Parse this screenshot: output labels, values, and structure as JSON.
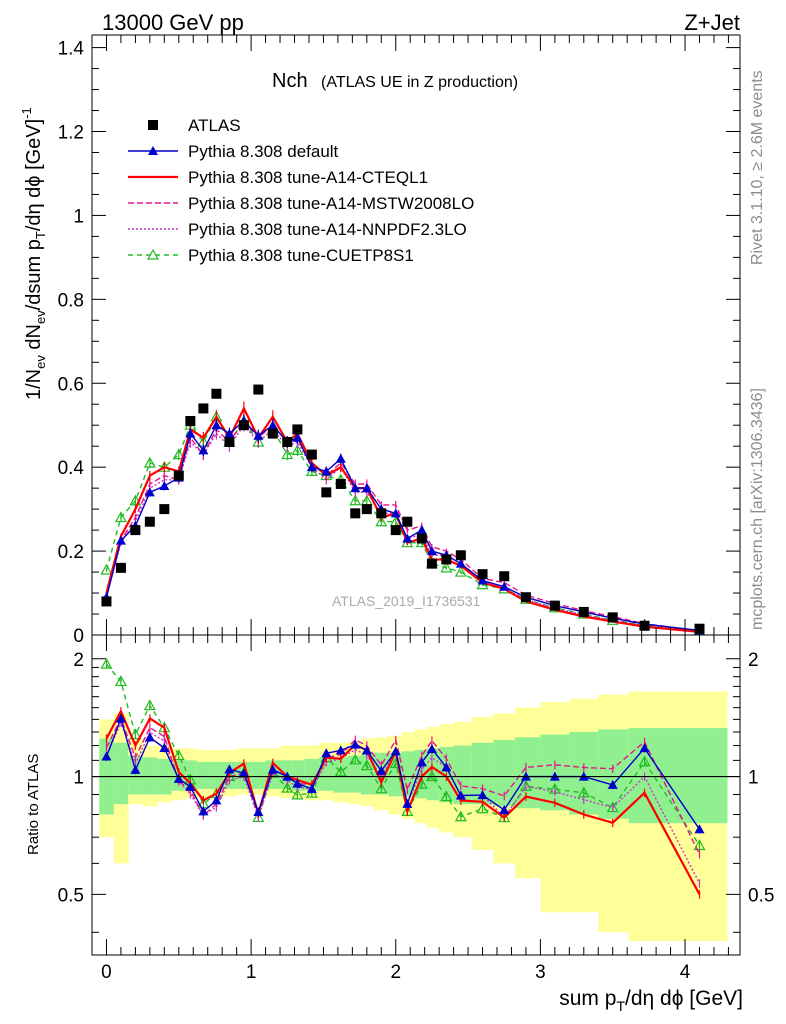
{
  "header": {
    "energy": "13000 GeV pp",
    "process": "Z+Jet"
  },
  "side_labels": {
    "rivet": "Rivet 3.1.10, ≥ 2.6M events",
    "mcplots": "mcplots.cern.ch [arXiv:1306.3436]"
  },
  "watermark": "ATLAS_2019_I1736531",
  "chart_data": [
    {
      "type": "scatter",
      "title": "Nch",
      "subtitle": "(ATLAS UE in Z production)",
      "ylabel": "1/N_ev dN_ev/dsum p_T/dη dϕ [GeV]^-1",
      "xlabel": "sum p_T/dη dϕ [GeV]",
      "xlim": [
        -0.1,
        4.38
      ],
      "ylim": [
        0,
        1.43
      ],
      "xticks": [
        "0",
        "1",
        "2",
        "3",
        "4"
      ],
      "yticks": [
        "0",
        "0.2",
        "0.4",
        "0.6",
        "0.8",
        "1",
        "1.2",
        "1.4"
      ],
      "legend_position": "top-left",
      "x": [
        0.0,
        0.1,
        0.2,
        0.3,
        0.4,
        0.5,
        0.58,
        0.67,
        0.76,
        0.85,
        0.95,
        1.05,
        1.15,
        1.25,
        1.32,
        1.42,
        1.52,
        1.62,
        1.72,
        1.8,
        1.9,
        2.0,
        2.08,
        2.18,
        2.25,
        2.35,
        2.45,
        2.6,
        2.75,
        2.9,
        3.1,
        3.3,
        3.5,
        3.72,
        4.1
      ],
      "series": [
        {
          "name": "ATLAS",
          "color": "#000000",
          "marker": "square",
          "values": [
            0.08,
            0.16,
            0.25,
            0.27,
            0.3,
            0.38,
            0.51,
            0.54,
            0.575,
            0.46,
            0.5,
            0.585,
            0.48,
            0.46,
            0.49,
            0.43,
            0.34,
            0.36,
            0.29,
            0.3,
            0.29,
            0.25,
            0.27,
            0.23,
            0.17,
            0.18,
            0.19,
            0.145,
            0.14,
            0.09,
            0.07,
            0.055,
            0.042,
            0.022,
            0.015
          ]
        },
        {
          "name": "Pythia 8.308 default",
          "color": "#0000cc",
          "marker": "triangle",
          "values": [
            0.09,
            0.225,
            0.26,
            0.34,
            0.355,
            0.375,
            0.48,
            0.44,
            0.5,
            0.48,
            0.51,
            0.475,
            0.5,
            0.46,
            0.47,
            0.4,
            0.39,
            0.42,
            0.35,
            0.35,
            0.3,
            0.29,
            0.23,
            0.25,
            0.2,
            0.19,
            0.17,
            0.13,
            0.115,
            0.09,
            0.07,
            0.055,
            0.04,
            0.026,
            0.011
          ]
        },
        {
          "name": "Pythia 8.308 tune-A14-CTEQL1",
          "color": "#ff0000",
          "marker": "none",
          "values": [
            0.1,
            0.235,
            0.3,
            0.38,
            0.4,
            0.39,
            0.49,
            0.47,
            0.52,
            0.47,
            0.54,
            0.47,
            0.52,
            0.46,
            0.48,
            0.41,
            0.38,
            0.4,
            0.35,
            0.35,
            0.28,
            0.29,
            0.22,
            0.23,
            0.18,
            0.18,
            0.165,
            0.125,
            0.11,
            0.08,
            0.06,
            0.044,
            0.032,
            0.02,
            0.0075
          ]
        },
        {
          "name": "Pythia 8.308 tune-A14-MSTW2008LO",
          "color": "#e8148a",
          "marker": "none",
          "values": [
            0.095,
            0.225,
            0.28,
            0.36,
            0.38,
            0.37,
            0.47,
            0.43,
            0.49,
            0.46,
            0.51,
            0.47,
            0.5,
            0.46,
            0.47,
            0.41,
            0.38,
            0.41,
            0.36,
            0.36,
            0.31,
            0.31,
            0.25,
            0.26,
            0.21,
            0.2,
            0.18,
            0.135,
            0.125,
            0.095,
            0.075,
            0.058,
            0.044,
            0.027,
            0.0095
          ]
        },
        {
          "name": "Pythia 8.308 tune-A14-NNPDF2.3LO",
          "color": "#cc33cc",
          "marker": "none",
          "values": [
            0.09,
            0.22,
            0.27,
            0.35,
            0.37,
            0.37,
            0.46,
            0.43,
            0.48,
            0.45,
            0.5,
            0.46,
            0.49,
            0.45,
            0.46,
            0.4,
            0.37,
            0.4,
            0.34,
            0.34,
            0.29,
            0.29,
            0.23,
            0.24,
            0.19,
            0.19,
            0.17,
            0.13,
            0.11,
            0.085,
            0.064,
            0.048,
            0.035,
            0.022,
            0.008
          ]
        },
        {
          "name": "Pythia 8.308 tune-CUETP8S1",
          "color": "#22bb22",
          "marker": "triangle-open",
          "values": [
            0.155,
            0.28,
            0.32,
            0.41,
            0.4,
            0.43,
            0.5,
            0.46,
            0.52,
            0.46,
            0.51,
            0.46,
            0.49,
            0.43,
            0.44,
            0.39,
            0.38,
            0.37,
            0.32,
            0.32,
            0.27,
            0.27,
            0.22,
            0.22,
            0.17,
            0.16,
            0.15,
            0.12,
            0.11,
            0.085,
            0.065,
            0.05,
            0.035,
            0.024,
            0.01
          ]
        }
      ]
    },
    {
      "type": "scatter",
      "ylabel": "Ratio to ATLAS",
      "xlim": [
        -0.1,
        4.38
      ],
      "ylim": [
        0.35,
        2.3
      ],
      "yticks": [
        "0.5",
        "1",
        "2"
      ],
      "log_scale_y": true,
      "reference_line": 1,
      "uncertainty_bands": {
        "inner_color": "#90f090",
        "outer_color": "#ffff99"
      }
    }
  ]
}
